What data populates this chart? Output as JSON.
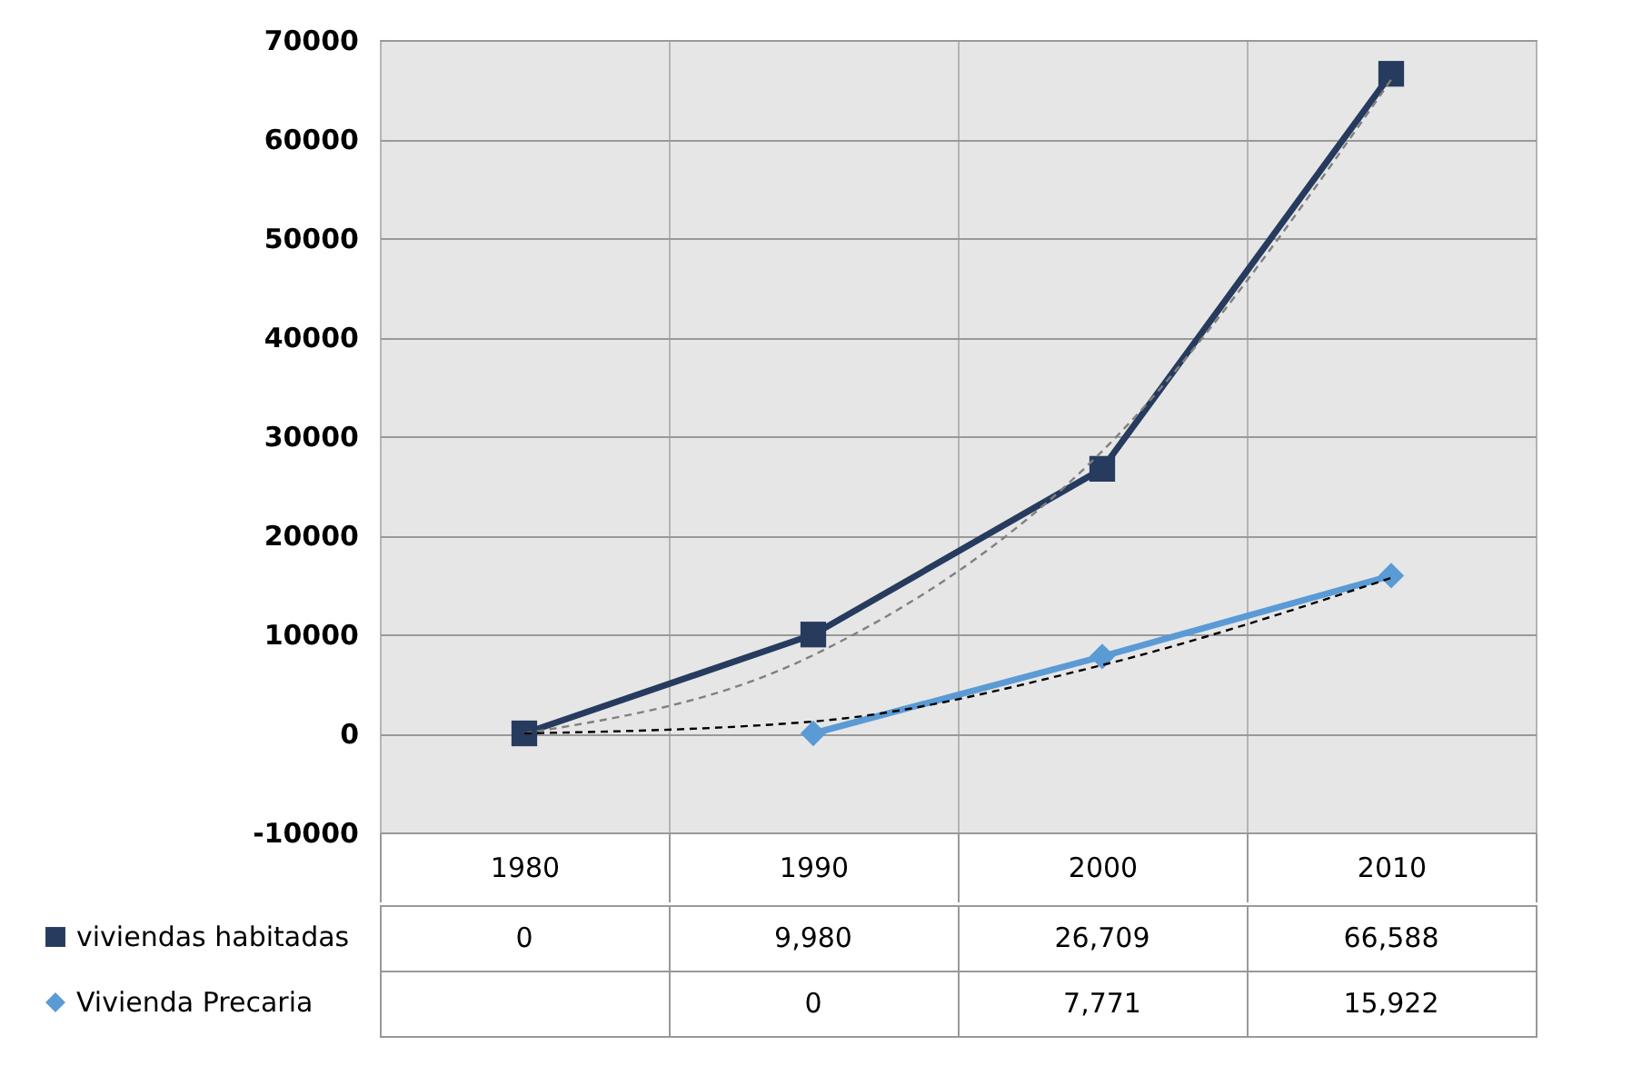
{
  "chart_data": {
    "type": "line",
    "categories": [
      "1980",
      "1990",
      "2000",
      "2010"
    ],
    "series": [
      {
        "name": "viviendas habitadas",
        "color": "#263b5e",
        "marker": "square",
        "values": [
          0,
          9980,
          26709,
          66588
        ],
        "value_labels": [
          "0",
          "9,980",
          "26,709",
          "66,588"
        ]
      },
      {
        "name": "Vivienda Precaria",
        "color": "#5b9bd5",
        "marker": "diamond",
        "values": [
          null,
          0,
          7771,
          15922
        ],
        "value_labels": [
          null,
          "0",
          "7,771",
          "15,922"
        ]
      },
      {
        "color": "#808080",
        "line_style": "dashed",
        "marker": "none",
        "values": [
          0,
          7900,
          28500,
          66000
        ]
      },
      {
        "color": "#000000",
        "line_style": "dashed",
        "marker": "none",
        "values": [
          0,
          1200,
          6900,
          15700
        ]
      }
    ],
    "ylim": [
      -10000,
      70000
    ],
    "yticks": [
      -10000,
      0,
      10000,
      20000,
      30000,
      40000,
      50000,
      60000,
      70000
    ],
    "grid": true,
    "legend": "bottom left"
  }
}
